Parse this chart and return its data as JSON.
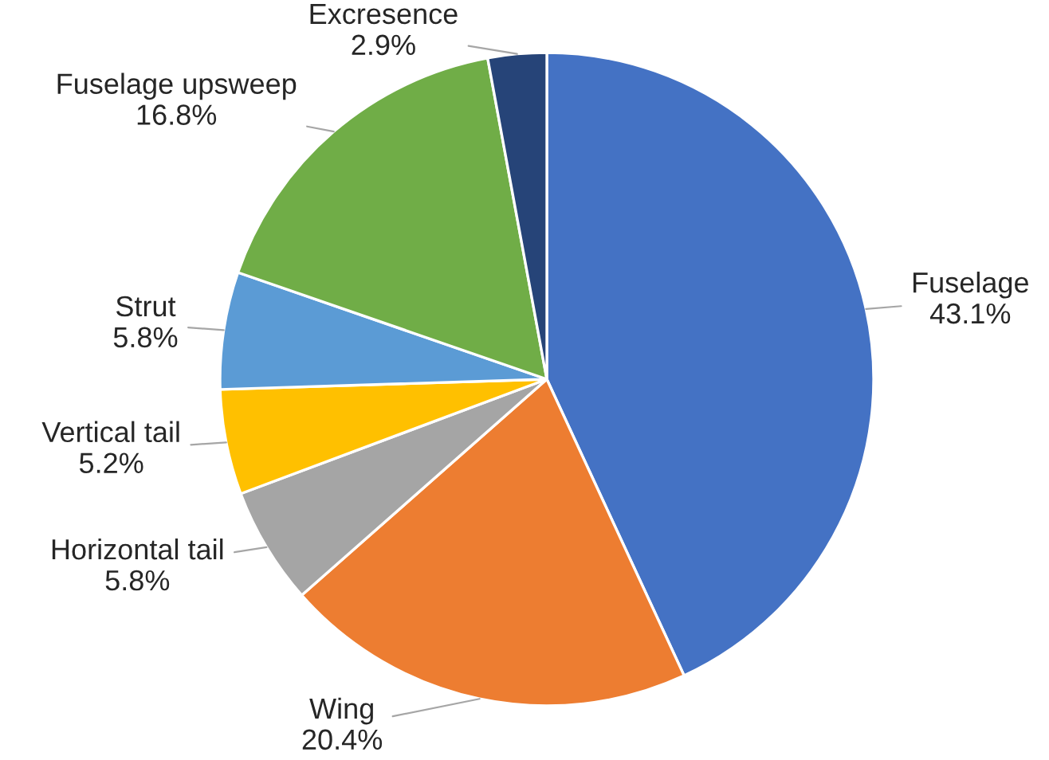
{
  "chart_data": {
    "type": "pie",
    "categories": [
      "Fuselage",
      "Wing",
      "Horizontal tail",
      "Vertical tail",
      "Strut",
      "Fuselage upsweep",
      "Excresence"
    ],
    "values": [
      43.1,
      20.4,
      5.8,
      5.2,
      5.8,
      16.8,
      2.9
    ],
    "value_labels": [
      "43.1%",
      "20.4%",
      "5.8%",
      "5.2%",
      "5.8%",
      "16.8%",
      "2.9%"
    ],
    "colors": [
      "#4472c4",
      "#ed7d31",
      "#a5a5a5",
      "#ffc000",
      "#5b9bd5",
      "#70ad47",
      "#264478"
    ],
    "legend": false
  }
}
